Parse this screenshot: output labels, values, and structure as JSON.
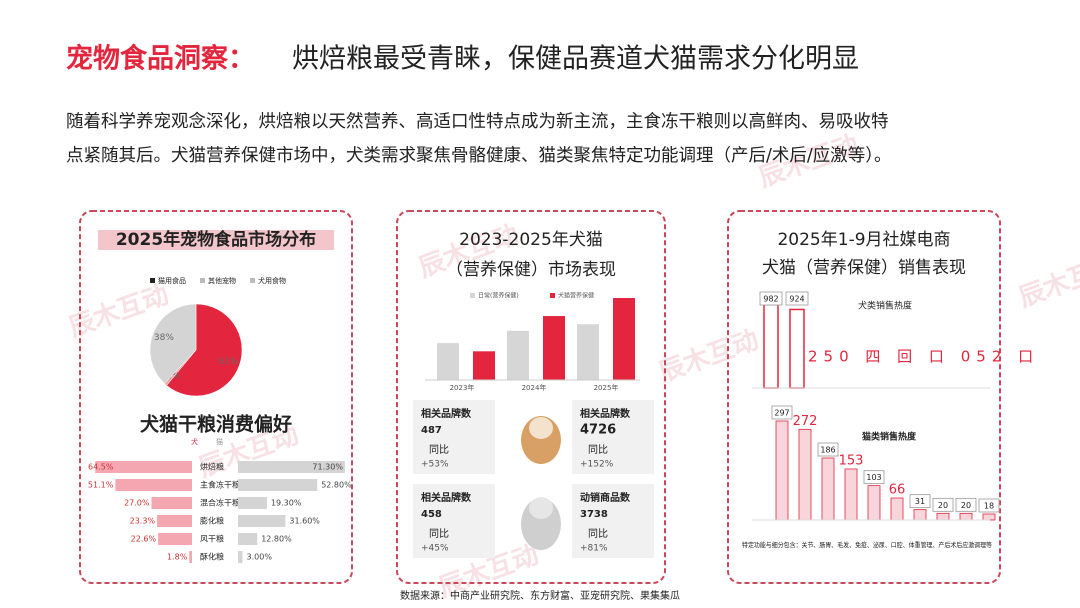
{
  "watermark": "辰木互动",
  "header": {
    "title_prefix": "宠物食品洞察：",
    "title": "烘焙粮最受青睐，保健品赛道犬猫需求分化明显"
  },
  "intro": [
    "随着科学养宠观念深化，烘焙粮以天然营养、高适口性特点成为新主流，主食冻干粮则以高鲜肉、易吸收特",
    "点紧随其后。犬猫营养保健市场中，犬类需求聚焦骨骼健康、猫类聚焦特定功能调理（产后/术后/应激等）。"
  ],
  "chart_data": [
    {
      "type": "pie",
      "title": "2025年宠物食品市场分布",
      "categories": [
        "犬用食物",
        "其他宠物",
        "猫用食品"
      ],
      "values": [
        61,
        1,
        38
      ],
      "value_labels": [
        "61%",
        "1%",
        "38%"
      ],
      "colors": [
        "#e3263d",
        "#f4a7b0",
        "#d4d4d4"
      ],
      "legend": [
        "猫用食品",
        "其他宠物",
        "犬用食物"
      ]
    },
    {
      "type": "butterfly",
      "title": "犬猫干粮消费偏好",
      "categories": [
        "烘焙粮",
        "主食冻干粮",
        "混合冻干粮",
        "膨化粮",
        "风干粮",
        "酥化粮"
      ],
      "xlim": [
        0,
        100
      ],
      "series": [
        {
          "name": "犬",
          "color": "#f4a7b0",
          "values": [
            64.5,
            51.1,
            27.0,
            23.3,
            22.6,
            1.8
          ],
          "value_labels": [
            "64.5%",
            "51.1%",
            "27.0%",
            "23.3%",
            "22.6%",
            "1.8%"
          ]
        },
        {
          "name": "猫",
          "color": "#d4d4d4",
          "values": [
            71.3,
            52.8,
            19.3,
            31.6,
            12.8,
            3.0
          ],
          "value_labels": [
            "71.30%",
            "52.80%",
            "19.30%",
            "31.60%",
            "12.80%",
            "3.00%"
          ]
        }
      ]
    },
    {
      "type": "bar",
      "title": [
        "2023-2025年犬猫",
        "（营养保健）市场表现"
      ],
      "categories": [
        "2023年",
        "2024年",
        "2025年"
      ],
      "ylim": [
        0,
        100
      ],
      "series": [
        {
          "name": "日常(营养保健)",
          "color": "#d6d6d6",
          "values": [
            45,
            60,
            68
          ]
        },
        {
          "name": "犬猫营养保健",
          "color": "#e3263d",
          "values": [
            35,
            78,
            100
          ]
        }
      ],
      "stats": [
        {
          "label": "相关品牌数",
          "value": "487",
          "change_label": "同比",
          "change": "+53%"
        },
        {
          "label": "相关品牌数",
          "value": "4726",
          "change_label": "同比",
          "change": "+152%"
        },
        {
          "label": "相关品牌数",
          "value": "458",
          "change_label": "同比",
          "change": "+45%"
        },
        {
          "label": "动销商品数",
          "value": "3738",
          "change_label": "同比",
          "change": "+81%"
        }
      ]
    },
    {
      "type": "bar",
      "title": [
        "2025年1-9月社媒电商",
        "犬猫（营养保健）销售表现"
      ],
      "ylim": [
        0,
        1000
      ],
      "series": [
        {
          "name": "犬类销售热度",
          "color": "#e3263d",
          "values": [
            982,
            924
          ]
        }
      ],
      "note": "250 四 回 口 052 口"
    },
    {
      "type": "bar",
      "ylim": [
        0,
        300
      ],
      "series": [
        {
          "name": "猫类销售热度",
          "color": "#e3263d",
          "values": [
            297,
            272,
            186,
            153,
            103,
            66,
            31,
            20,
            20,
            18
          ]
        }
      ],
      "footnote": "特定功能与细分包含：关节、肠胃、毛发、免疫、泌尿、口腔、体重管理、产后术后应激调理等"
    }
  ],
  "source": "数据来源：中商产业研究院、东方财富、亚宠研究院、果集集瓜"
}
